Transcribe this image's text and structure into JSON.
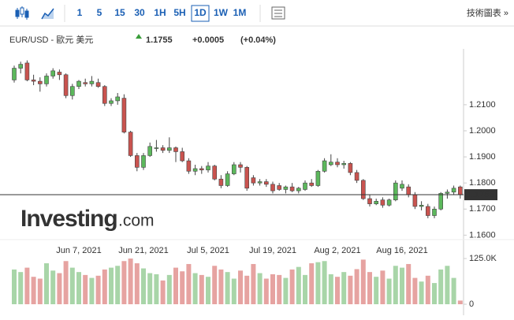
{
  "toolbar": {
    "intervals": [
      "1",
      "5",
      "15",
      "30",
      "1H",
      "5H",
      "1D",
      "1W",
      "1M"
    ],
    "active": "1D",
    "link": "技術圖表 »"
  },
  "header": {
    "symbol": "EUR/USD - 歐元 美元",
    "price": "1.1755",
    "change": "+0.0005",
    "change_pct": "(+0.04%)"
  },
  "watermark": [
    "Investing",
    ".com"
  ],
  "chart_data": {
    "type": "candlestick",
    "categories": [
      null,
      null,
      null,
      null,
      null,
      null,
      null,
      null,
      null,
      null,
      "Jun 7, 2021",
      null,
      null,
      null,
      null,
      null,
      null,
      null,
      null,
      null,
      "Jun 21, 2021",
      null,
      null,
      null,
      null,
      null,
      null,
      null,
      null,
      null,
      "Jul 5, 2021",
      null,
      null,
      null,
      null,
      null,
      null,
      null,
      null,
      null,
      "Jul 19, 2021",
      null,
      null,
      null,
      null,
      null,
      null,
      null,
      null,
      null,
      "Aug 2, 2021",
      null,
      null,
      null,
      null,
      null,
      null,
      null,
      null,
      null,
      "Aug 16, 2021",
      null,
      null,
      null,
      null,
      null,
      null,
      null,
      null,
      null
    ],
    "open": [
      1.2195,
      1.224,
      1.226,
      1.2195,
      1.219,
      1.218,
      1.221,
      1.2225,
      1.2215,
      1.2135,
      1.217,
      1.2185,
      1.218,
      1.2185,
      1.217,
      1.2105,
      1.2115,
      1.2125,
      1.1995,
      1.1905,
      1.186,
      1.1905,
      1.1935,
      1.1935,
      1.1925,
      1.1935,
      1.192,
      1.1885,
      1.1845,
      1.1855,
      1.185,
      1.1865,
      1.1815,
      1.179,
      1.1835,
      1.187,
      1.186,
      1.182,
      1.18,
      1.1805,
      1.1795,
      1.179,
      1.1775,
      1.1785,
      1.177,
      1.1775,
      1.18,
      1.179,
      1.1845,
      1.187,
      1.188,
      1.187,
      1.1875,
      1.184,
      1.181,
      1.174,
      1.172,
      1.1735,
      1.1715,
      1.1735,
      1.178,
      1.1785,
      1.1755,
      1.171,
      1.171,
      1.1675,
      1.17,
      1.176,
      1.1765,
      1.1785
    ],
    "high": [
      1.225,
      1.2265,
      1.227,
      1.2215,
      1.2205,
      1.222,
      1.224,
      1.2235,
      1.222,
      1.218,
      1.2195,
      1.22,
      1.221,
      1.22,
      1.2175,
      1.2125,
      1.2145,
      1.214,
      1.2,
      1.1915,
      1.1915,
      1.1955,
      1.1965,
      1.1945,
      1.1975,
      1.194,
      1.1935,
      1.1895,
      1.187,
      1.1865,
      1.188,
      1.187,
      1.183,
      1.1845,
      1.188,
      1.188,
      1.1865,
      1.183,
      1.1815,
      1.1815,
      1.1805,
      1.18,
      1.179,
      1.18,
      1.1785,
      1.181,
      1.1815,
      1.185,
      1.1895,
      1.191,
      1.1895,
      1.1885,
      1.188,
      1.185,
      1.1815,
      1.1755,
      1.174,
      1.1745,
      1.174,
      1.181,
      1.181,
      1.1795,
      1.1765,
      1.173,
      1.172,
      1.171,
      1.1765,
      1.1775,
      1.179,
      1.179
    ],
    "low": [
      1.2185,
      1.222,
      1.219,
      1.2175,
      1.215,
      1.217,
      1.22,
      1.2195,
      1.2125,
      1.212,
      1.216,
      1.217,
      1.217,
      1.2165,
      1.2095,
      1.2095,
      1.21,
      1.199,
      1.19,
      1.1845,
      1.185,
      1.19,
      1.192,
      1.1915,
      1.1915,
      1.188,
      1.188,
      1.1835,
      1.183,
      1.1835,
      1.184,
      1.181,
      1.178,
      1.1785,
      1.183,
      1.184,
      1.177,
      1.179,
      1.179,
      1.1785,
      1.176,
      1.177,
      1.176,
      1.1765,
      1.176,
      1.177,
      1.1785,
      1.1785,
      1.184,
      1.1865,
      1.186,
      1.1855,
      1.183,
      1.18,
      1.1735,
      1.171,
      1.1715,
      1.1705,
      1.171,
      1.173,
      1.177,
      1.1745,
      1.17,
      1.1695,
      1.1665,
      1.1665,
      1.1695,
      1.174,
      1.1755,
      1.174
    ],
    "close": [
      1.224,
      1.2255,
      1.2195,
      1.219,
      1.218,
      1.221,
      1.223,
      1.2215,
      1.2135,
      1.217,
      1.219,
      1.218,
      1.219,
      1.217,
      1.2105,
      1.2115,
      1.213,
      1.1995,
      1.1905,
      1.186,
      1.1905,
      1.194,
      1.1935,
      1.1925,
      1.1935,
      1.192,
      1.1885,
      1.1845,
      1.1855,
      1.185,
      1.1865,
      1.1815,
      1.179,
      1.1835,
      1.187,
      1.186,
      1.178,
      1.18,
      1.1805,
      1.1795,
      1.177,
      1.1775,
      1.1785,
      1.177,
      1.178,
      1.18,
      1.179,
      1.1845,
      1.1885,
      1.188,
      1.187,
      1.1875,
      1.184,
      1.181,
      1.174,
      1.172,
      1.173,
      1.1715,
      1.1735,
      1.18,
      1.1795,
      1.1755,
      1.171,
      1.1715,
      1.1675,
      1.17,
      1.176,
      1.1765,
      1.178,
      1.1755
    ],
    "volume": [
      95000,
      88000,
      100000,
      75000,
      70000,
      112000,
      92000,
      85000,
      118000,
      100000,
      88000,
      80000,
      72000,
      78000,
      95000,
      100000,
      105000,
      118000,
      125000,
      112000,
      98000,
      85000,
      82000,
      65000,
      80000,
      100000,
      90000,
      110000,
      85000,
      80000,
      75000,
      105000,
      95000,
      88000,
      70000,
      92000,
      78000,
      110000,
      85000,
      70000,
      82000,
      80000,
      72000,
      95000,
      102000,
      80000,
      112000,
      115000,
      118000,
      82000,
      75000,
      88000,
      78000,
      96000,
      122000,
      88000,
      75000,
      92000,
      70000,
      105000,
      100000,
      110000,
      72000,
      62000,
      78000,
      58000,
      95000,
      105000,
      72000,
      10000
    ],
    "up_color": "#5cb85c",
    "down_color": "#c9534f",
    "up_volume_color": "#a8d5a8",
    "down_volume_color": "#e6a3a1",
    "ylim": [
      1.1595,
      1.229
    ],
    "yticks": [
      {
        "value": 1.16,
        "label": "1.1600"
      },
      {
        "value": 1.17,
        "label": "1.1700"
      },
      {
        "value": 1.18,
        "label": "1.1800"
      },
      {
        "value": 1.19,
        "label": "1.1900"
      },
      {
        "value": 1.2,
        "label": "1.2000"
      },
      {
        "value": 1.21,
        "label": "1.2100"
      }
    ],
    "price_line": {
      "value": 1.1755,
      "label": "1.1755"
    },
    "y2lim": [
      0,
      125000
    ],
    "y2ticks": [
      {
        "value": 125000,
        "label": "125.0K"
      },
      0
    ]
  }
}
